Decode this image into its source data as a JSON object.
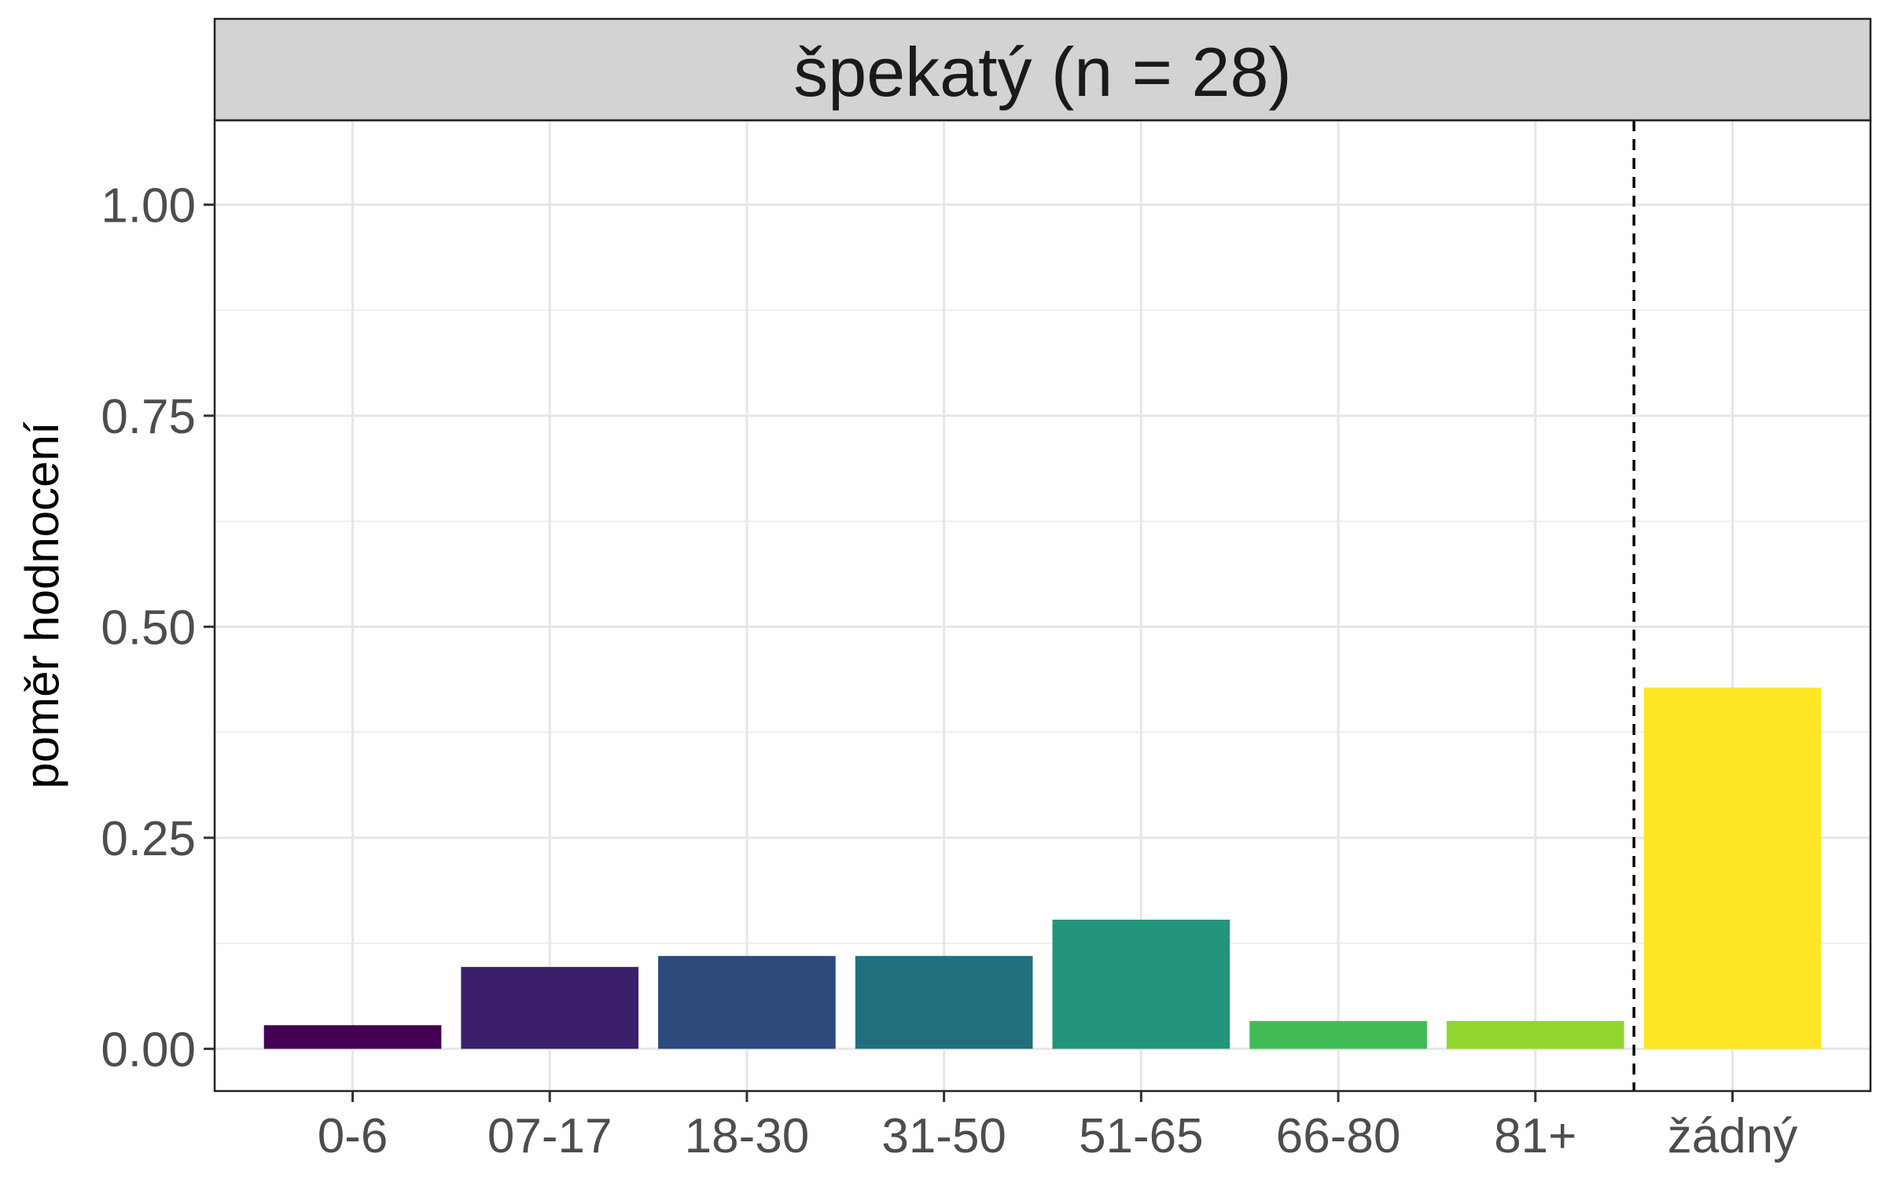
{
  "chart_data": {
    "type": "bar",
    "facet_title": "špekatý (n = 28)",
    "ylabel": "poměr hodnocení",
    "xlabel": "",
    "categories": [
      "0-6",
      "07-17",
      "18-30",
      "31-50",
      "51-65",
      "66-80",
      "81+",
      "žádný"
    ],
    "values": [
      0.028,
      0.097,
      0.11,
      0.11,
      0.153,
      0.033,
      0.033,
      0.428
    ],
    "colors": [
      "#440154",
      "#3b1f6b",
      "#2c4a7c",
      "#216f7e",
      "#22957a",
      "#43bb55",
      "#92d530",
      "#fde725"
    ],
    "ylim": [
      -0.05,
      1.1
    ],
    "yticks": [
      0.0,
      0.25,
      0.5,
      0.75,
      1.0
    ],
    "ytick_labels": [
      "0.00",
      "0.25",
      "0.50",
      "0.75",
      "1.00"
    ],
    "dashed_separator_between": [
      "81+",
      "žádný"
    ],
    "grid": true
  }
}
